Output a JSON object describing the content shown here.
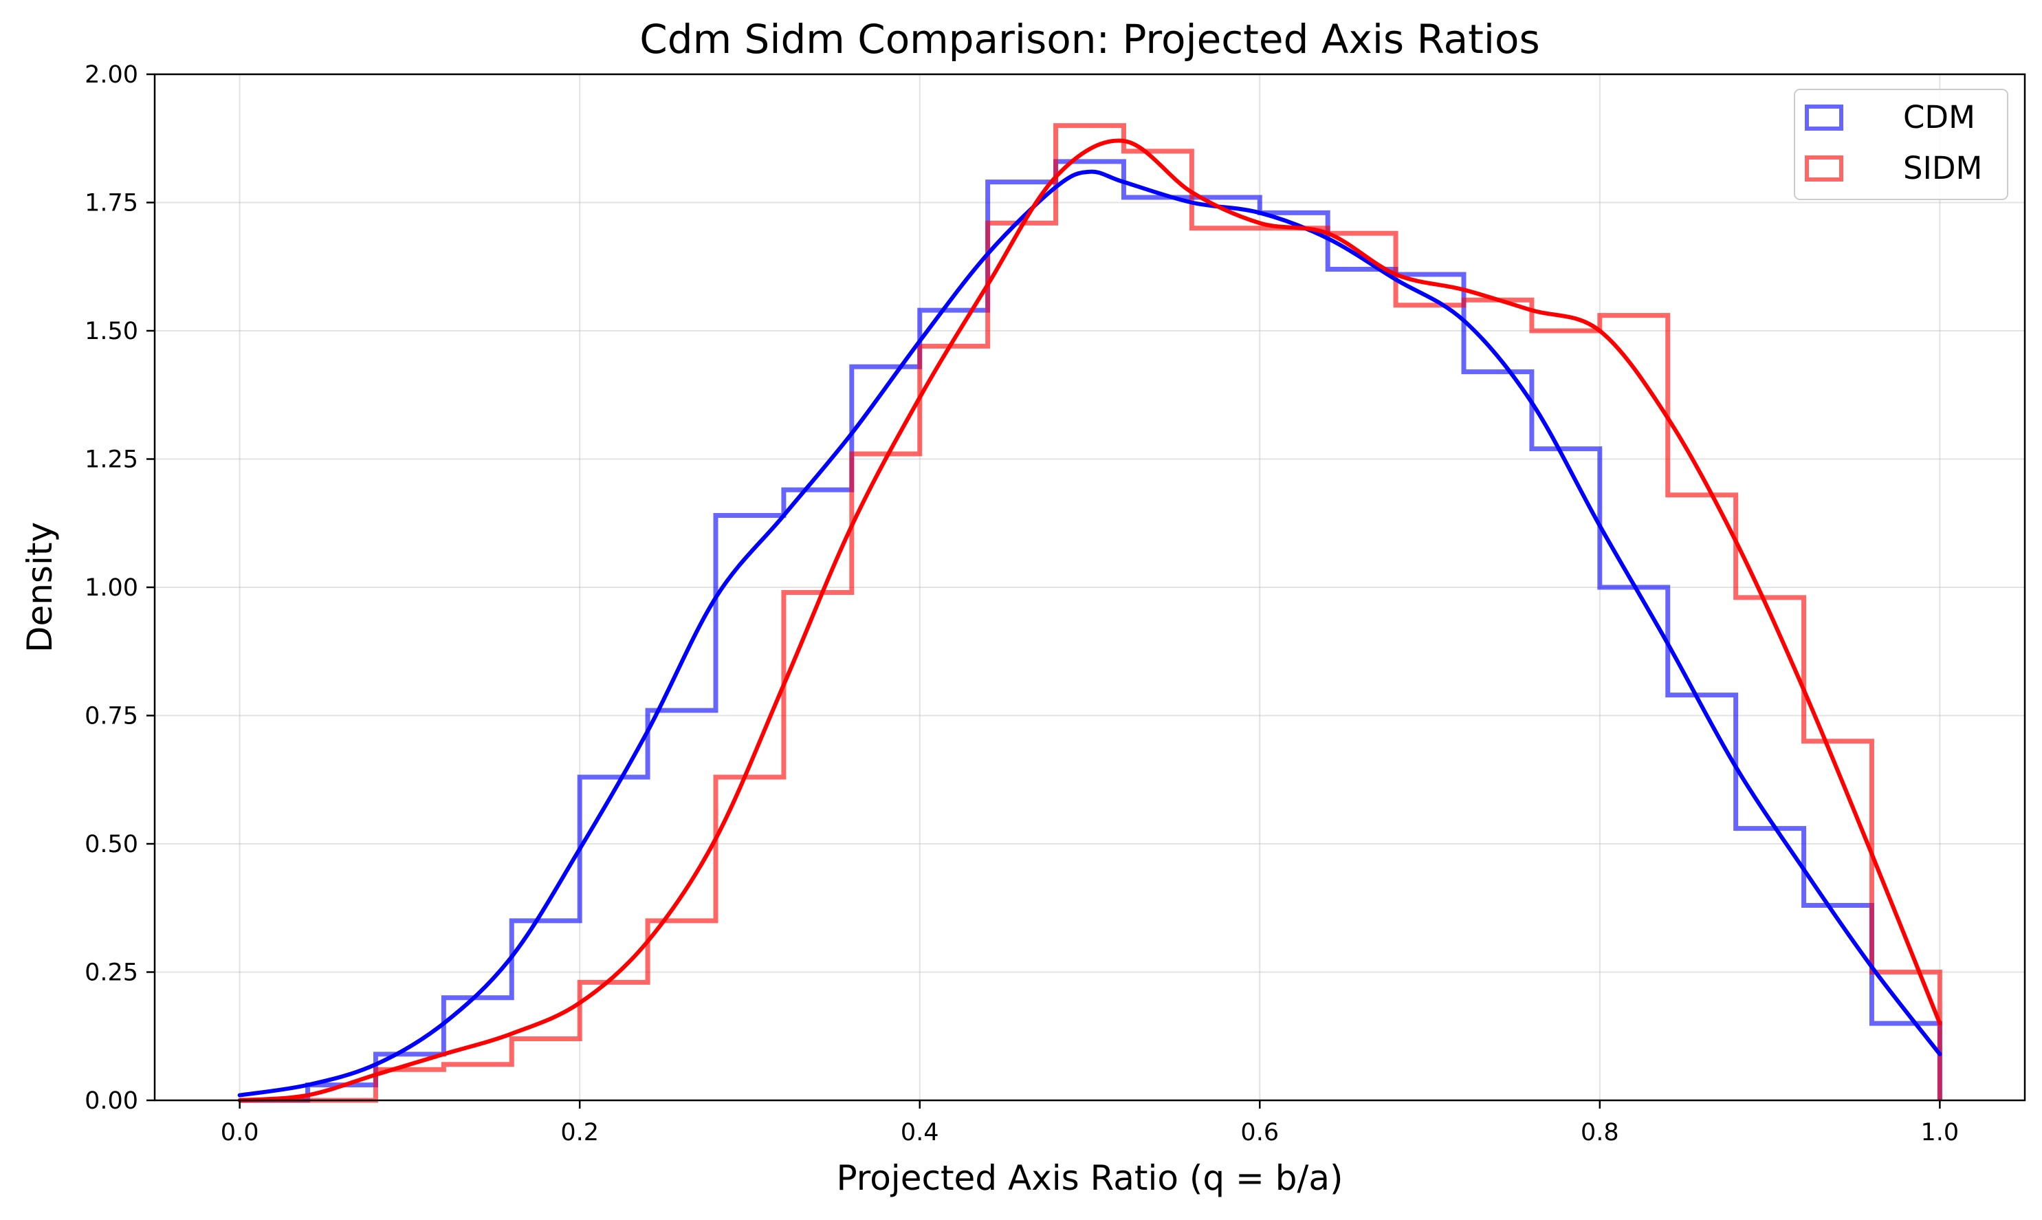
{
  "chart_data": {
    "type": "histogram",
    "title": "Cdm Sidm Comparison: Projected Axis Ratios",
    "xlabel": "Projected Axis Ratio (q = b/a)",
    "ylabel": "Density",
    "xlim": [
      -0.05,
      1.05
    ],
    "ylim": [
      0,
      2.0
    ],
    "xticks": [
      0.0,
      0.2,
      0.4,
      0.6,
      0.8,
      1.0
    ],
    "xtick_labels": [
      "0.0",
      "0.2",
      "0.4",
      "0.6",
      "0.8",
      "1.0"
    ],
    "yticks": [
      0,
      0.25,
      0.5,
      0.75,
      1.0,
      1.25,
      1.5,
      1.75,
      2.0
    ],
    "ytick_labels": [
      "0.00",
      "0.25",
      "0.50",
      "0.75",
      "1.00",
      "1.25",
      "1.50",
      "1.75",
      "2.00"
    ],
    "grid": true,
    "legend_position": "top-right",
    "bin_edges": [
      0.0,
      0.04,
      0.08,
      0.12,
      0.16,
      0.2,
      0.24,
      0.28,
      0.32,
      0.36,
      0.4,
      0.44,
      0.48,
      0.52,
      0.56,
      0.6,
      0.64,
      0.68,
      0.72,
      0.76,
      0.8,
      0.84,
      0.88,
      0.92,
      0.96,
      1.0
    ],
    "series": [
      {
        "name": "CDM",
        "color": "#0000ff",
        "hist": [
          0.0,
          0.03,
          0.09,
          0.2,
          0.35,
          0.63,
          0.76,
          1.14,
          1.19,
          1.43,
          1.54,
          1.79,
          1.83,
          1.76,
          1.76,
          1.73,
          1.62,
          1.61,
          1.42,
          1.27,
          1.0,
          0.79,
          0.53,
          0.38,
          0.15
        ],
        "kde_x": [
          0.0,
          0.04,
          0.08,
          0.12,
          0.16,
          0.2,
          0.24,
          0.28,
          0.32,
          0.36,
          0.4,
          0.44,
          0.48,
          0.5,
          0.52,
          0.56,
          0.6,
          0.64,
          0.68,
          0.72,
          0.76,
          0.8,
          0.84,
          0.88,
          0.92,
          0.96,
          1.0
        ],
        "kde_y": [
          0.01,
          0.03,
          0.07,
          0.15,
          0.28,
          0.49,
          0.72,
          0.98,
          1.14,
          1.3,
          1.48,
          1.65,
          1.78,
          1.81,
          1.79,
          1.75,
          1.73,
          1.68,
          1.6,
          1.52,
          1.36,
          1.12,
          0.89,
          0.65,
          0.45,
          0.26,
          0.09
        ]
      },
      {
        "name": "SIDM",
        "color": "#ff0000",
        "hist": [
          0.0,
          0.0,
          0.06,
          0.07,
          0.12,
          0.23,
          0.35,
          0.63,
          0.99,
          1.26,
          1.47,
          1.71,
          1.9,
          1.85,
          1.7,
          1.7,
          1.69,
          1.55,
          1.56,
          1.5,
          1.53,
          1.18,
          0.98,
          0.7,
          0.25
        ],
        "kde_x": [
          0.0,
          0.04,
          0.08,
          0.12,
          0.16,
          0.2,
          0.24,
          0.28,
          0.32,
          0.36,
          0.4,
          0.44,
          0.48,
          0.52,
          0.56,
          0.6,
          0.64,
          0.68,
          0.72,
          0.76,
          0.8,
          0.84,
          0.88,
          0.92,
          0.96,
          1.0
        ],
        "kde_y": [
          0.0,
          0.01,
          0.05,
          0.09,
          0.13,
          0.19,
          0.31,
          0.51,
          0.81,
          1.12,
          1.37,
          1.59,
          1.8,
          1.87,
          1.77,
          1.71,
          1.69,
          1.61,
          1.58,
          1.54,
          1.5,
          1.33,
          1.09,
          0.8,
          0.48,
          0.15
        ]
      }
    ]
  }
}
